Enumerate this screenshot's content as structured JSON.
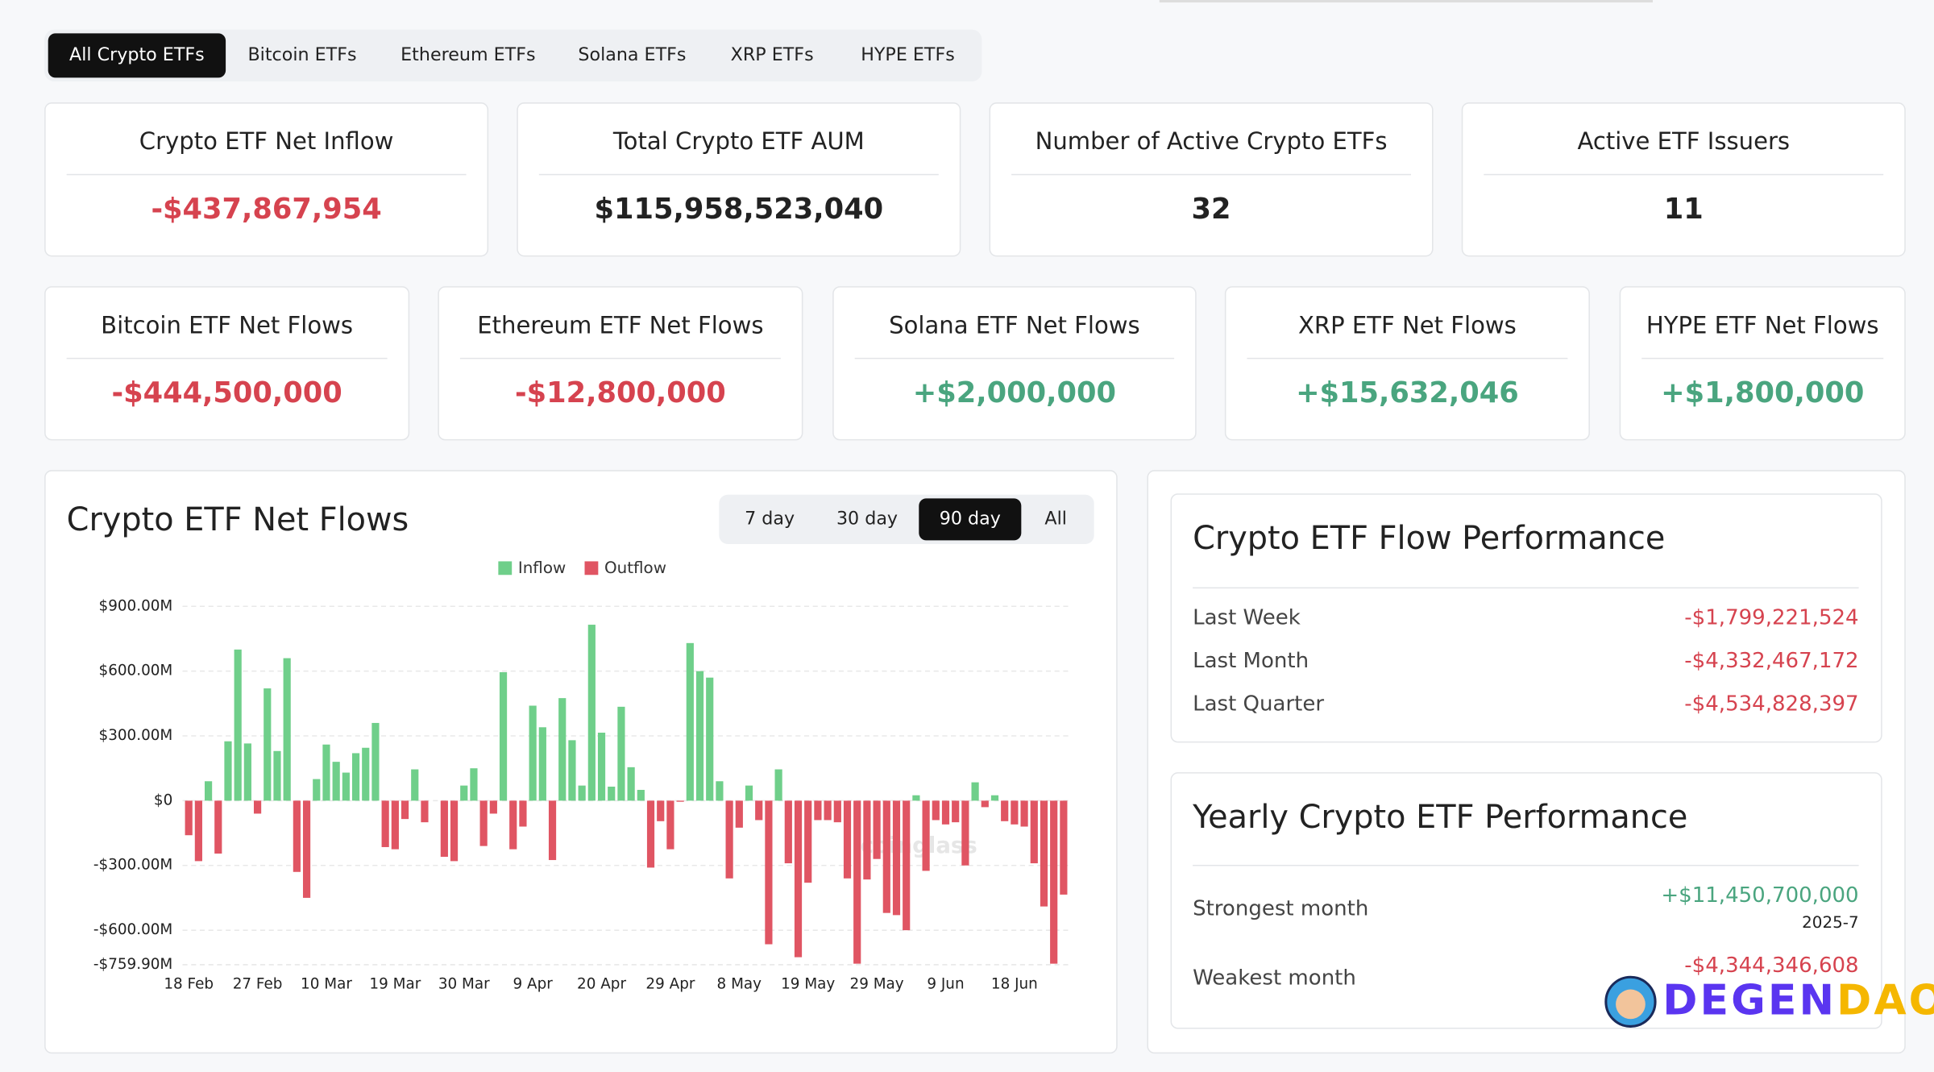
{
  "tabs": [
    "All Crypto ETFs",
    "Bitcoin ETFs",
    "Ethereum ETFs",
    "Solana ETFs",
    "XRP ETFs",
    "HYPE ETFs"
  ],
  "summary_cards": [
    {
      "title": "Crypto ETF Net Inflow",
      "value": "-$437,867,954"
    },
    {
      "title": "Total Crypto ETF AUM",
      "value": "$115,958,523,040"
    },
    {
      "title": "Number of Active Crypto ETFs",
      "value": "32"
    },
    {
      "title": "Active ETF Issuers",
      "value": "11"
    }
  ],
  "flow_cards": [
    {
      "title": "Bitcoin ETF Net Flows",
      "value": "-$444,500,000"
    },
    {
      "title": "Ethereum ETF Net Flows",
      "value": "-$12,800,000"
    },
    {
      "title": "Solana ETF Net Flows",
      "value": "+$2,000,000"
    },
    {
      "title": "XRP ETF Net Flows",
      "value": "+$15,632,046"
    },
    {
      "title": "HYPE ETF Net Flows",
      "value": "+$1,800,000"
    }
  ],
  "chart_data": {
    "type": "bar",
    "title": "Crypto ETF Net Flows",
    "range_options": [
      "7 day",
      "30 day",
      "90 day",
      "All"
    ],
    "legend": [
      {
        "name": "Inflow",
        "color": "#6fcf8a"
      },
      {
        "name": "Outflow",
        "color": "#e05563"
      }
    ],
    "categories": [
      "18 Feb",
      null,
      null,
      null,
      null,
      null,
      null,
      "27 Feb",
      null,
      null,
      null,
      null,
      null,
      null,
      "10 Mar",
      null,
      null,
      null,
      null,
      null,
      null,
      "19 Mar",
      null,
      null,
      null,
      null,
      null,
      null,
      "30 Mar",
      null,
      null,
      null,
      null,
      null,
      null,
      "9 Apr",
      null,
      null,
      null,
      null,
      null,
      null,
      "20 Apr",
      null,
      null,
      null,
      null,
      null,
      null,
      "29 Apr",
      null,
      null,
      null,
      null,
      null,
      null,
      "8 May",
      null,
      null,
      null,
      null,
      null,
      null,
      "19 May",
      null,
      null,
      null,
      null,
      null,
      null,
      "29 May",
      null,
      null,
      null,
      null,
      null,
      null,
      "9 Jun",
      null,
      null,
      null,
      null,
      null,
      null,
      "18 Jun",
      null,
      null,
      null,
      null,
      null
    ],
    "values": [
      -160,
      -280,
      90,
      -245,
      275,
      700,
      265,
      -60,
      520,
      230,
      660,
      -330,
      -450,
      100,
      260,
      180,
      130,
      220,
      245,
      360,
      -215,
      -225,
      -85,
      145,
      -100,
      0,
      -260,
      -280,
      70,
      150,
      -210,
      -60,
      595,
      -225,
      -120,
      440,
      340,
      -275,
      475,
      280,
      70,
      815,
      315,
      65,
      435,
      155,
      50,
      -310,
      -95,
      -225,
      -5,
      730,
      600,
      570,
      90,
      -360,
      -125,
      70,
      -90,
      -665,
      145,
      -290,
      -725,
      -380,
      -90,
      -90,
      -100,
      -360,
      -755,
      -365,
      -270,
      -520,
      -530,
      -600,
      25,
      -325,
      -90,
      -110,
      -100,
      -300,
      85,
      -30,
      25,
      -95,
      -110,
      -120,
      -290,
      -490,
      -755,
      -435
    ],
    "ylim": [
      -759.9,
      900
    ],
    "yticks": [
      {
        "value": -759.9,
        "label": "-$759.90M"
      },
      {
        "value": -600,
        "label": "-$600.00M"
      },
      {
        "value": -300,
        "label": "-$300.00M"
      },
      {
        "value": 0,
        "label": "$0"
      },
      {
        "value": 300,
        "label": "$300.00M"
      },
      {
        "value": 600,
        "label": "$600.00M"
      },
      {
        "value": 900,
        "label": "$900.00M"
      }
    ],
    "grid": true,
    "watermark": "coinglass"
  },
  "flow_performance": {
    "title": "Crypto ETF Flow Performance",
    "rows": [
      {
        "label": "Last Week",
        "value": "-$1,799,221,524"
      },
      {
        "label": "Last Month",
        "value": "-$4,332,467,172"
      },
      {
        "label": "Last Quarter",
        "value": "-$4,534,828,397"
      }
    ]
  },
  "yearly_performance": {
    "title": "Yearly Crypto ETF Performance",
    "rows": [
      {
        "label": "Strongest month",
        "value": "+$11,450,700,000",
        "period": "2025-7"
      },
      {
        "label": "Weakest month",
        "value": "-$4,344,346,608"
      }
    ]
  },
  "logo_parts": [
    "DEGEN",
    "DAO!"
  ]
}
